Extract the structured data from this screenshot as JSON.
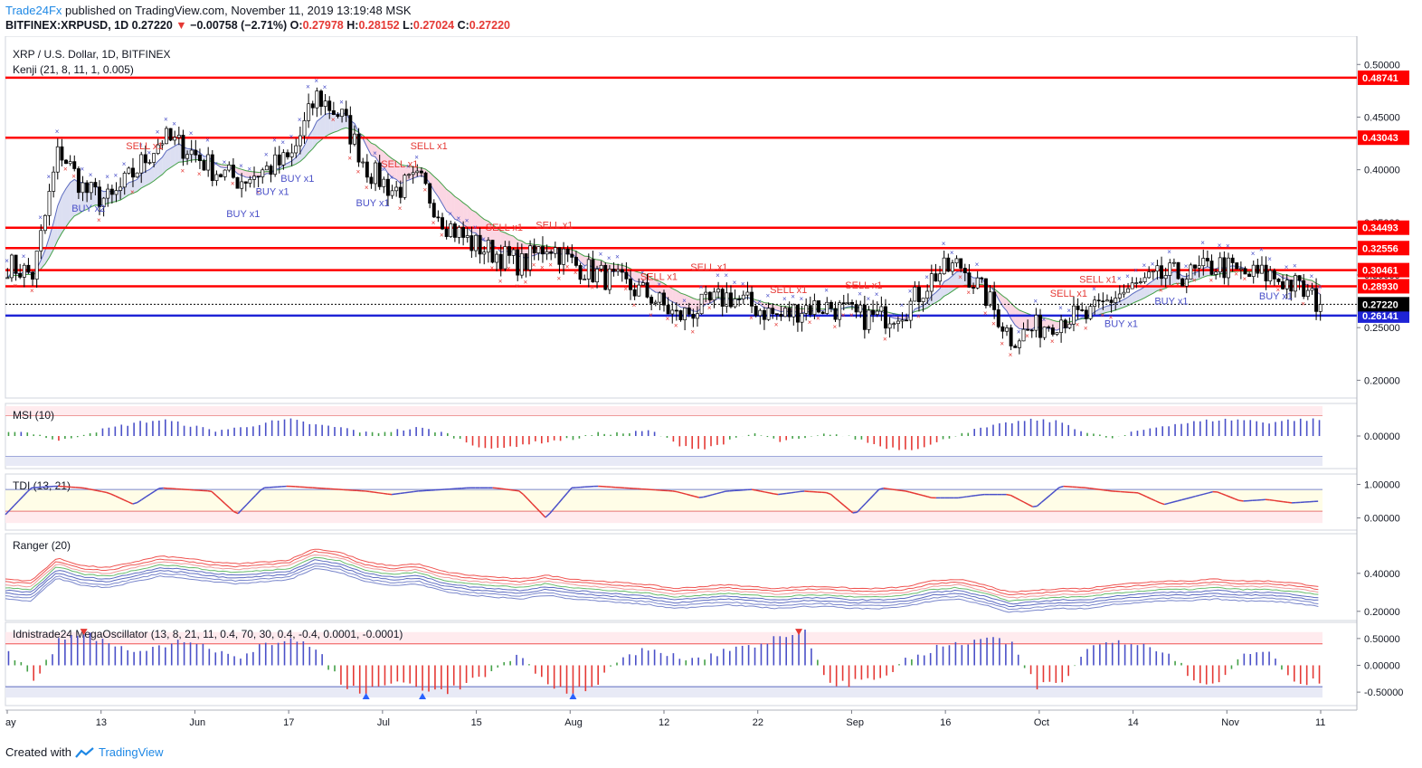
{
  "header": {
    "publisher": "Trade24Fx",
    "published_text": "published on TradingView.com, November 11, 2019 13:19:48 MSK",
    "symbol": "BITFINEX:XRPUSD, 1D",
    "last": "0.27220",
    "change": "−0.00758 (−2.71%)",
    "o_label": "O:",
    "o": "0.27978",
    "h_label": "H:",
    "h": "0.28152",
    "l_label": "L:",
    "l": "0.27024",
    "c_label": "C:",
    "c": "0.27220"
  },
  "main_pane": {
    "title": "XRP / U.S. Dollar, 1D, BITFINEX",
    "indicator": "Kenji (21, 8, 11, 1, 0.005)"
  },
  "footer": {
    "created_with": "Created with",
    "brand": "TradingView"
  },
  "colors": {
    "up": "#ffffff",
    "down": "#000000",
    "sr_line": "#ff0000",
    "support": "#1f24d6",
    "buy": "#4a50c8",
    "sell": "#e53935",
    "neutral": "#43a047"
  },
  "chart_data": [
    {
      "type": "candlestick",
      "pane": "price",
      "title": "XRP / U.S. Dollar, 1D, BITFINEX",
      "x_ticks": [
        "ay",
        "13",
        "Jun",
        "17",
        "Jul",
        "15",
        "Aug",
        "12",
        "22",
        "Sep",
        "16",
        "Oct",
        "14",
        "Nov",
        "11"
      ],
      "y_ticks": [
        "0.50000",
        "0.45000",
        "0.40000",
        "0.35000",
        "0.30000",
        "0.25000",
        "0.20000"
      ],
      "ylim": [
        0.19,
        0.52
      ],
      "close_path": [
        0.31,
        0.3,
        0.42,
        0.38,
        0.37,
        0.4,
        0.43,
        0.42,
        0.4,
        0.39,
        0.4,
        0.41,
        0.47,
        0.45,
        0.4,
        0.38,
        0.39,
        0.35,
        0.33,
        0.32,
        0.31,
        0.33,
        0.31,
        0.3,
        0.29,
        0.28,
        0.26,
        0.27,
        0.28,
        0.27,
        0.26,
        0.27,
        0.27,
        0.26,
        0.26,
        0.27,
        0.3,
        0.31,
        0.28,
        0.24,
        0.25,
        0.26,
        0.26,
        0.28,
        0.29,
        0.3,
        0.3,
        0.31,
        0.3,
        0.3,
        0.29,
        0.272
      ],
      "levels": [
        {
          "value": 0.48741,
          "label": "0.48741",
          "color": "#ff0000"
        },
        {
          "value": 0.43043,
          "label": "0.43043",
          "color": "#ff0000"
        },
        {
          "value": 0.34493,
          "label": "0.34493",
          "color": "#ff0000"
        },
        {
          "value": 0.32556,
          "label": "0.32556",
          "color": "#ff0000"
        },
        {
          "value": 0.30461,
          "label": "0.30461",
          "color": "#ff0000"
        },
        {
          "value": 0.2893,
          "label": "0.28930",
          "color": "#ff0000"
        },
        {
          "value": 0.26141,
          "label": "0.26141",
          "color": "#1f24d6"
        }
      ],
      "last_price": {
        "value": 0.2722,
        "label": "0.27220"
      },
      "annotations": [
        {
          "text": "SELL x1",
          "index": 5
        },
        {
          "text": "SELL x1",
          "index": 15
        },
        {
          "text": "SELL x1",
          "index": 16
        },
        {
          "text": "SELL x1",
          "index": 19
        },
        {
          "text": "SELL x1",
          "index": 21
        },
        {
          "text": "SELL x1",
          "index": 25
        },
        {
          "text": "SELL x1",
          "index": 27
        },
        {
          "text": "SELL x1",
          "index": 30
        },
        {
          "text": "SELL x1",
          "index": 33
        },
        {
          "text": "SELL x1",
          "index": 41
        },
        {
          "text": "SELL x1",
          "index": 42
        },
        {
          "text": "BUY x1",
          "index": 9
        },
        {
          "text": "BUY x1",
          "index": 10
        },
        {
          "text": "BUY x1",
          "index": 11
        },
        {
          "text": "BUY x1",
          "index": 14
        },
        {
          "text": "BUY x2",
          "index": 3
        },
        {
          "text": "BUY x1",
          "index": 43
        },
        {
          "text": "BUY x1",
          "index": 45
        },
        {
          "text": "BUY x1",
          "index": 49
        }
      ]
    },
    {
      "type": "bar",
      "pane": "oscillator",
      "title": "MSI (10)",
      "y_ticks": [
        "0.00000"
      ],
      "ylim": [
        -1,
        1
      ],
      "values": [
        0.2,
        0.1,
        -0.2,
        0.1,
        0.3,
        0.5,
        0.6,
        0.4,
        0.2,
        0.3,
        0.5,
        0.6,
        0.4,
        0.3,
        0.1,
        0.2,
        0.3,
        0.1,
        -0.3,
        -0.5,
        -0.3,
        -0.2,
        -0.1,
        0.1,
        0.1,
        0.2,
        -0.3,
        -0.5,
        -0.2,
        0.1,
        -0.2,
        -0.1,
        0.1,
        -0.1,
        -0.4,
        -0.5,
        -0.3,
        0.1,
        0.3,
        0.5,
        0.6,
        0.5,
        0.1,
        -0.1,
        0.2,
        0.4,
        0.5,
        0.6,
        0.6,
        0.5,
        0.6,
        0.6
      ]
    },
    {
      "type": "line",
      "pane": "oscillator",
      "title": "TDI (13, 21)",
      "y_ticks": [
        "1.00000",
        "0.00000"
      ],
      "ylim": [
        -0.2,
        1.15
      ],
      "values": [
        0.1,
        0.9,
        0.95,
        0.9,
        0.75,
        0.4,
        0.9,
        0.85,
        0.8,
        0.1,
        0.9,
        0.95,
        0.9,
        0.85,
        0.8,
        0.7,
        0.8,
        0.85,
        0.9,
        0.9,
        0.8,
        0.0,
        0.9,
        0.95,
        0.9,
        0.85,
        0.8,
        0.6,
        0.8,
        0.85,
        0.7,
        0.8,
        0.75,
        0.1,
        0.9,
        0.8,
        0.6,
        0.6,
        0.7,
        0.7,
        0.3,
        0.95,
        0.9,
        0.8,
        0.75,
        0.4,
        0.6,
        0.8,
        0.5,
        0.55,
        0.45,
        0.5
      ]
    },
    {
      "type": "line",
      "pane": "oscillator",
      "title": "Ranger (20)",
      "y_ticks": [
        "0.40000",
        "0.20000"
      ],
      "ylim": [
        0.18,
        0.58
      ]
    },
    {
      "type": "bar",
      "pane": "oscillator",
      "title": "Idnistrade24 MegaOscillator (13, 8, 21, 11, 0.4, 70, 30, 0.4, -0.4, 0.0001, -0.0001)",
      "y_ticks": [
        "0.50000",
        "0.00000",
        "-0.50000"
      ],
      "ylim": [
        -0.65,
        0.7
      ],
      "values": [
        0.3,
        -0.3,
        0.5,
        0.6,
        0.4,
        0.2,
        0.4,
        0.5,
        0.3,
        0.1,
        0.4,
        0.5,
        0.3,
        -0.4,
        -0.5,
        -0.3,
        -0.4,
        -0.5,
        -0.3,
        -0.1,
        0.2,
        -0.4,
        -0.5,
        -0.3,
        0.2,
        0.3,
        0.2,
        0.1,
        0.3,
        0.4,
        0.5,
        0.6,
        -0.4,
        -0.3,
        -0.2,
        0.1,
        0.3,
        0.4,
        0.5,
        0.4,
        -0.4,
        -0.3,
        0.3,
        0.5,
        0.4,
        0.3,
        -0.2,
        -0.4,
        0.2,
        0.3,
        -0.3,
        -0.3
      ]
    }
  ]
}
